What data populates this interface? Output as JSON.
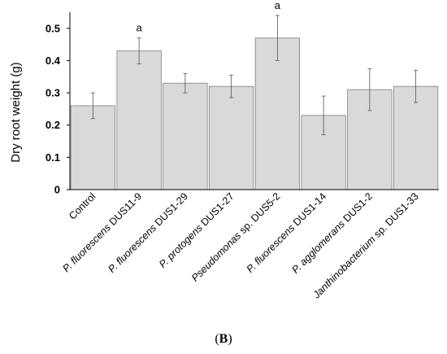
{
  "chart_data": {
    "type": "bar",
    "ylabel": "Dry root weight (g)",
    "ylim": [
      0,
      0.55
    ],
    "yticks": [
      "0",
      "0.1",
      "0.2",
      "0.3",
      "0.4",
      "0.5"
    ],
    "grid": false,
    "bar_color": "#d9d9d9",
    "bar_edge_color": "#7f7f7f",
    "categories": [
      {
        "italic": "",
        "rest": "Control"
      },
      {
        "italic": "P. fluorescens",
        "rest": " DUS11-9"
      },
      {
        "italic": "P. fluorescens",
        "rest": " DUS1-29"
      },
      {
        "italic": "P. protogens",
        "rest": " DUS1-27"
      },
      {
        "italic": "Pseudomonas",
        "rest": " sp. DUS5-2"
      },
      {
        "italic": "P. fluorescens",
        "rest": " DUS1-14"
      },
      {
        "italic": "P. agglomerans",
        "rest": " DUS1-2"
      },
      {
        "italic": "Janthinobacterium",
        "rest": " sp. DUS1-33"
      }
    ],
    "values": [
      0.26,
      0.43,
      0.33,
      0.32,
      0.47,
      0.23,
      0.31,
      0.32
    ],
    "errors": [
      0.04,
      0.04,
      0.03,
      0.035,
      0.07,
      0.06,
      0.065,
      0.05
    ],
    "annotations": [
      "",
      "a",
      "",
      "",
      "a",
      "",
      "",
      ""
    ],
    "panel_label": "B"
  }
}
